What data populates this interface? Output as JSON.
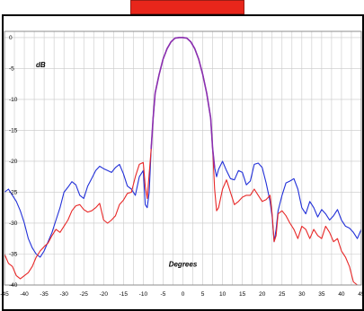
{
  "colors": {
    "banner_fill": "#e8261b",
    "banner_border": "#9a1d16",
    "frame": "#000000",
    "grid": "#c8c8c8",
    "series_blue": "#2230d8",
    "series_red": "#e82828",
    "overlap": "#8a2fb0"
  },
  "chart_data": {
    "type": "line",
    "xlabel": "Degrees",
    "ylabel": "dB",
    "xlim": [
      -45,
      45
    ],
    "ylim": [
      -40,
      1
    ],
    "x_ticks": [
      -45,
      -40,
      -35,
      -30,
      -25,
      -20,
      -15,
      -10,
      -5,
      0,
      5,
      10,
      15,
      20,
      25,
      30,
      35,
      40,
      45
    ],
    "y_ticks": [
      0,
      -5,
      -10,
      -15,
      -20,
      -25,
      -30,
      -35,
      -40
    ],
    "x_tick_labels": [
      "-45",
      "-40",
      "-35",
      "-30",
      "-25",
      "-20",
      "-15",
      "-10",
      "-5",
      "0",
      "5",
      "10",
      "15",
      "20",
      "25",
      "30",
      "35",
      "40",
      "45"
    ],
    "y_tick_labels": [
      "0",
      "-5",
      "-10",
      "-15",
      "-20",
      "-25",
      "-30",
      "-35",
      "-40"
    ],
    "minor_x_step": 2.5,
    "grid": true,
    "series": [
      {
        "color": "#2230d8",
        "x": [
          -45,
          -44,
          -43,
          -42,
          -41,
          -40,
          -39,
          -38,
          -37,
          -36,
          -35,
          -34,
          -33,
          -32,
          -31,
          -30,
          -29,
          -28,
          -27,
          -26,
          -25,
          -24,
          -23,
          -22,
          -21,
          -20,
          -19,
          -18,
          -17,
          -16,
          -15,
          -14,
          -13,
          -12,
          -11,
          -10,
          -9.5,
          -9,
          -8.5,
          -8,
          -7.5,
          -7,
          -6,
          -5,
          -4,
          -3,
          -2,
          -1,
          0,
          1,
          2,
          3,
          4,
          5,
          6,
          7,
          7.5,
          8,
          8.5,
          9,
          10,
          11,
          12,
          13,
          14,
          15,
          16,
          17,
          18,
          19,
          20,
          21,
          22,
          22.5,
          23,
          23.5,
          24,
          25,
          26,
          27,
          28,
          29,
          30,
          31,
          32,
          33,
          34,
          35,
          36,
          37,
          38,
          39,
          40,
          41,
          42,
          43,
          44,
          45
        ],
        "values": [
          -25,
          -24.5,
          -25.5,
          -26.5,
          -28,
          -30,
          -32.5,
          -34,
          -35,
          -35.5,
          -34.5,
          -33,
          -31.5,
          -29.5,
          -27.5,
          -25,
          -24.2,
          -23.3,
          -23.8,
          -25.5,
          -26,
          -24,
          -22.8,
          -21.5,
          -20.8,
          -21.2,
          -21.5,
          -21.8,
          -21,
          -20.5,
          -22,
          -24,
          -24.5,
          -25.5,
          -22.5,
          -21.5,
          -27,
          -27.5,
          -25,
          -18,
          -13,
          -9,
          -6,
          -3.5,
          -1.8,
          -0.7,
          -0.1,
          0,
          0,
          -0.1,
          -0.7,
          -1.8,
          -3.5,
          -6,
          -9,
          -13,
          -18,
          -21,
          -22.5,
          -21.3,
          -20,
          -21.5,
          -22.8,
          -23,
          -21.5,
          -21.8,
          -23.8,
          -23.2,
          -20.5,
          -20.3,
          -21,
          -23.5,
          -26.5,
          -29,
          -33,
          -31,
          -28,
          -25.5,
          -23.5,
          -23.2,
          -22.8,
          -24.5,
          -27.5,
          -28.5,
          -26.5,
          -27.5,
          -29,
          -27.8,
          -28.5,
          -29.5,
          -28.8,
          -27.8,
          -29.5,
          -30.5,
          -30.8,
          -31.5,
          -32.5,
          -31
        ]
      },
      {
        "color": "#e82828",
        "x": [
          -45,
          -44,
          -43,
          -42,
          -41,
          -40,
          -39,
          -38,
          -37,
          -36,
          -35,
          -34,
          -33,
          -32,
          -31,
          -30,
          -29,
          -28,
          -27,
          -26,
          -25,
          -24,
          -23,
          -22,
          -21,
          -20,
          -19,
          -18,
          -17,
          -16,
          -15,
          -14,
          -13,
          -12,
          -11,
          -10,
          -9.5,
          -9,
          -8.5,
          -8,
          -7.5,
          -7,
          -6,
          -5,
          -4,
          -3,
          -2,
          -1,
          0,
          1,
          2,
          3,
          4,
          5,
          6,
          7,
          7.5,
          8,
          8.5,
          9,
          10,
          11,
          12,
          13,
          14,
          15,
          16,
          17,
          18,
          19,
          20,
          21,
          22,
          22.5,
          23,
          23.5,
          24,
          25,
          26,
          27,
          28,
          29,
          30,
          31,
          32,
          33,
          34,
          35,
          36,
          37,
          38,
          39,
          40,
          41,
          42,
          43,
          44,
          45
        ],
        "values": [
          -35,
          -36.5,
          -37,
          -38.5,
          -39,
          -38.5,
          -38,
          -37,
          -35.5,
          -34.5,
          -33.8,
          -33.2,
          -32,
          -31,
          -31.5,
          -30.5,
          -29.5,
          -28,
          -27.2,
          -27,
          -27.8,
          -28.2,
          -28,
          -27.5,
          -26.8,
          -29.5,
          -30,
          -29.5,
          -28.8,
          -27,
          -26.3,
          -25.2,
          -25,
          -22.5,
          -20.5,
          -20.2,
          -24,
          -26,
          -22,
          -18,
          -13,
          -9,
          -6,
          -3.5,
          -1.8,
          -0.7,
          -0.1,
          0,
          0,
          -0.1,
          -0.7,
          -1.8,
          -3.5,
          -6,
          -9,
          -13,
          -18,
          -24.5,
          -28,
          -27.5,
          -24.5,
          -23,
          -25,
          -27,
          -26.5,
          -25.8,
          -25.5,
          -25.5,
          -24.5,
          -25.5,
          -26.5,
          -26.2,
          -25.5,
          -28.5,
          -33,
          -32,
          -28.5,
          -28,
          -28.8,
          -30,
          -31,
          -32.5,
          -30.5,
          -31,
          -32.5,
          -31,
          -32,
          -32.5,
          -30.5,
          -31.5,
          -33,
          -32.5,
          -34.5,
          -35.5,
          -37,
          -39.5,
          -40,
          -40
        ]
      }
    ]
  }
}
